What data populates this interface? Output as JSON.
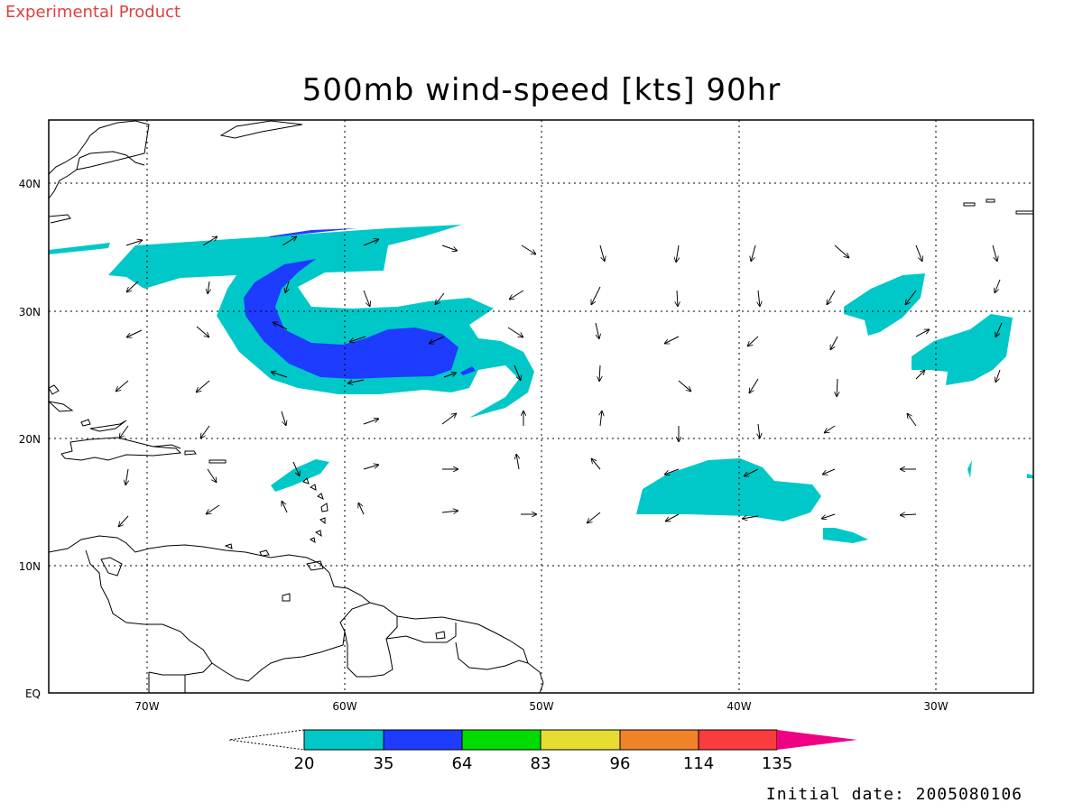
{
  "header": {
    "experimental_label": "Experimental Product",
    "title": "500mb wind-speed [kts] 90hr",
    "initial_date": "Initial date: 2005080106"
  },
  "map": {
    "lon_range": [
      -75,
      -25
    ],
    "lat_range": [
      0,
      45
    ],
    "lon_ticks": [
      {
        "value": -70,
        "label": "70W"
      },
      {
        "value": -60,
        "label": "60W"
      },
      {
        "value": -50,
        "label": "50W"
      },
      {
        "value": -40,
        "label": "40W"
      },
      {
        "value": -30,
        "label": "30W"
      }
    ],
    "lat_ticks": [
      {
        "value": 0,
        "label": "EQ"
      },
      {
        "value": 10,
        "label": "10N"
      },
      {
        "value": 20,
        "label": "20N"
      },
      {
        "value": 30,
        "label": "30N"
      },
      {
        "value": 40,
        "label": "40N"
      }
    ],
    "grid": "dotted"
  },
  "colorbar": {
    "labels": [
      "20",
      "35",
      "64",
      "83",
      "96",
      "114",
      "135"
    ],
    "colors": [
      "#00c8c8",
      "#1e3cff",
      "#00dc00",
      "#e6dc32",
      "#f08228",
      "#fa3c3c",
      "#f00082"
    ]
  }
}
